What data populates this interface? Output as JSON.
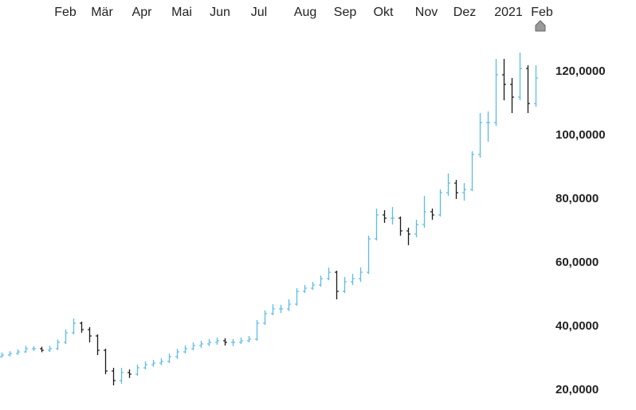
{
  "chart_data": {
    "type": "ohlc",
    "up_color": "#5bbcec",
    "down_color": "#1a1a1a",
    "xlim": [
      -0.2,
      68.8
    ],
    "xticks": [
      {
        "value": 8,
        "label": "Feb"
      },
      {
        "value": 12.6,
        "label": "Mär"
      },
      {
        "value": 17.6,
        "label": "Apr"
      },
      {
        "value": 22.6,
        "label": "Mai"
      },
      {
        "value": 27.4,
        "label": "Jun"
      },
      {
        "value": 32.3,
        "label": "Jul"
      },
      {
        "value": 38.1,
        "label": "Aug"
      },
      {
        "value": 43.1,
        "label": "Sep"
      },
      {
        "value": 47.9,
        "label": "Okt"
      },
      {
        "value": 53.3,
        "label": "Nov"
      },
      {
        "value": 58.1,
        "label": "Dez"
      },
      {
        "value": 63.6,
        "label": "2021"
      },
      {
        "value": 67.8,
        "label": "Feb"
      }
    ],
    "ylim": [
      13.75,
      142.5
    ],
    "yticks": [
      {
        "value": 20,
        "label": "20,0000"
      },
      {
        "value": 40,
        "label": "40,0000"
      },
      {
        "value": 60,
        "label": "60,0000"
      },
      {
        "value": 80,
        "label": "80,0000"
      },
      {
        "value": 100,
        "label": "100,0000"
      },
      {
        "value": 120,
        "label": "120,0000"
      }
    ],
    "open": [
      30.5,
      31,
      31.5,
      32,
      33,
      33,
      32.5,
      33,
      35,
      38,
      41,
      39,
      37,
      32.5,
      26,
      23,
      25.5,
      25,
      27,
      28,
      28.5,
      29,
      30.5,
      32,
      33,
      34,
      34.5,
      35,
      35.5,
      35,
      35,
      35.5,
      36,
      41,
      44,
      45.5,
      45.5,
      47,
      51,
      52,
      53,
      55,
      57,
      51,
      54,
      55,
      57,
      67.5,
      75,
      74,
      74,
      70,
      69,
      72,
      76,
      75,
      82,
      85,
      82,
      83,
      94,
      104,
      104,
      119,
      116,
      112,
      121,
      110
    ],
    "high": [
      31.8,
      32.2,
      32.8,
      33.9,
      33.8,
      33.6,
      33.9,
      35.9,
      39,
      42.5,
      41.5,
      39.8,
      37.5,
      33,
      27,
      27,
      26.5,
      28,
      29,
      29.5,
      30,
      31.5,
      33,
      34,
      35,
      35.5,
      36,
      36.5,
      36.3,
      36,
      36.5,
      37,
      42,
      45,
      47,
      46.8,
      48.5,
      52,
      53,
      54,
      56,
      58.5,
      57.5,
      55.5,
      56.5,
      58.5,
      68.5,
      77,
      76.5,
      77.5,
      74.5,
      71,
      73.5,
      81,
      77,
      83,
      88,
      86,
      85,
      95,
      107,
      107.5,
      124,
      124,
      118,
      126,
      122,
      122
    ],
    "low": [
      30.2,
      30.6,
      31.1,
      31.7,
      32.3,
      31.9,
      32,
      32.6,
      34.5,
      37.5,
      38,
      35,
      31,
      25,
      21.5,
      22,
      23.8,
      24.5,
      26.5,
      27.3,
      27.8,
      28.5,
      29.8,
      31.5,
      32.5,
      33.2,
      33.8,
      34.2,
      34,
      33.8,
      34.5,
      35,
      35.5,
      40.5,
      43.5,
      44.2,
      44.8,
      46.5,
      50.5,
      51.5,
      52.5,
      54.5,
      48.5,
      50.5,
      53,
      54,
      56.5,
      67,
      72.5,
      72,
      68.5,
      65.5,
      68,
      71,
      73.5,
      74.5,
      81,
      80,
      79.5,
      82.5,
      93,
      98,
      103,
      111,
      107,
      111,
      107,
      109
    ],
    "close": [
      31,
      31.5,
      32,
      33,
      33,
      32.5,
      33,
      35,
      38,
      41,
      39,
      37,
      32.5,
      26,
      23,
      25.5,
      25,
      27,
      28,
      28.5,
      29,
      30.5,
      32,
      33,
      34,
      34.5,
      35,
      35.5,
      35,
      35,
      35.5,
      36,
      41,
      44,
      45.5,
      45.5,
      47,
      51,
      52,
      53,
      55,
      57,
      51,
      54,
      55,
      57,
      67.5,
      75,
      74,
      74,
      70,
      69,
      72,
      76,
      75,
      82,
      85,
      82,
      83,
      94,
      104,
      104,
      119,
      116,
      112,
      121,
      110,
      118
    ]
  }
}
